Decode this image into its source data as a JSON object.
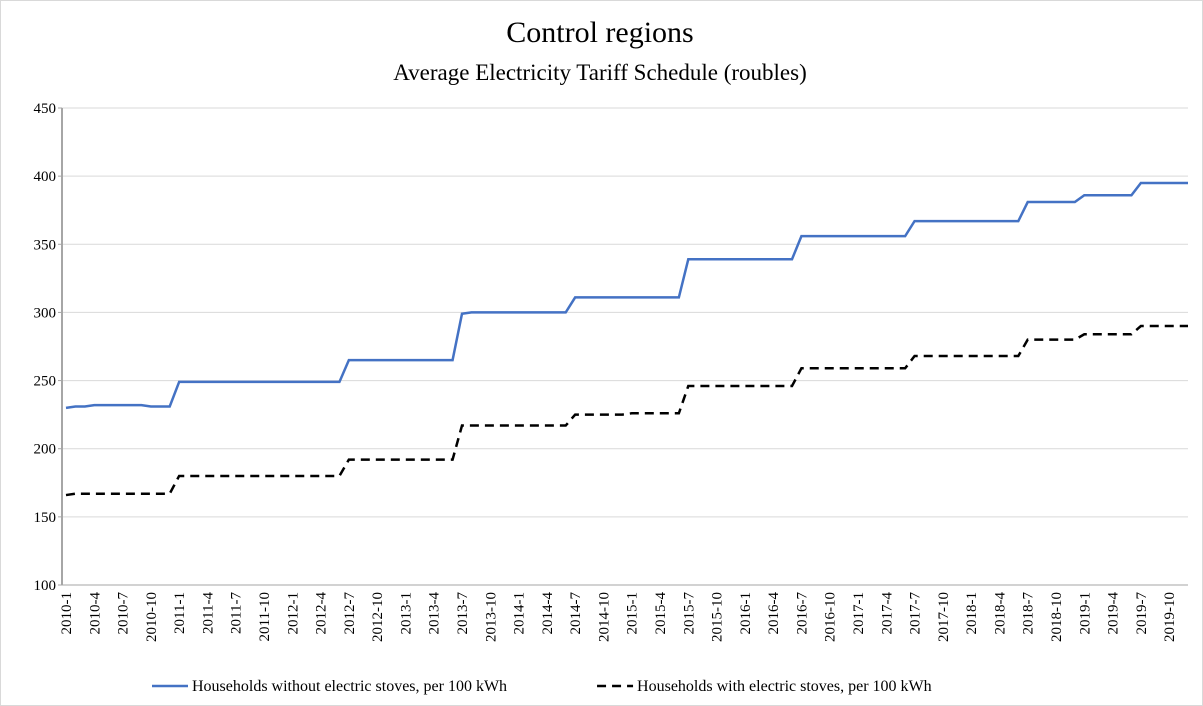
{
  "chart_data": {
    "type": "line",
    "title": "Control regions",
    "subtitle": "Average Electricity Tariff Schedule  (roubles)",
    "categories": [
      "2010-1",
      null,
      null,
      "2010-4",
      null,
      null,
      "2010-7",
      null,
      null,
      "2010-10",
      null,
      null,
      "2011-1",
      null,
      null,
      "2011-4",
      null,
      null,
      "2011-7",
      null,
      null,
      "2011-10",
      null,
      null,
      "2012-1",
      null,
      null,
      "2012-4",
      null,
      null,
      "2012-7",
      null,
      null,
      "2012-10",
      null,
      null,
      "2013-1",
      null,
      null,
      "2013-4",
      null,
      null,
      "2013-7",
      null,
      null,
      "2013-10",
      null,
      null,
      "2014-1",
      null,
      null,
      "2014-4",
      null,
      null,
      "2014-7",
      null,
      null,
      "2014-10",
      null,
      null,
      "2015-1",
      null,
      null,
      "2015-4",
      null,
      null,
      "2015-7",
      null,
      null,
      "2015-10",
      null,
      null,
      "2016-1",
      null,
      null,
      "2016-4",
      null,
      null,
      "2016-7",
      null,
      null,
      "2016-10",
      null,
      null,
      "2017-1",
      null,
      null,
      "2017-4",
      null,
      null,
      "2017-7",
      null,
      null,
      "2017-10",
      null,
      null,
      "2018-1",
      null,
      null,
      "2018-4",
      null,
      null,
      "2018-7",
      null,
      null,
      "2018-10",
      null,
      null,
      "2019-1",
      null,
      null,
      "2019-4",
      null,
      null,
      "2019-7",
      null,
      null,
      "2019-10",
      null,
      null
    ],
    "series": [
      {
        "name": "Households  without electric stoves, per 100 kWh",
        "color": "#4472c4",
        "linestyle": "solid",
        "values": [
          230,
          231,
          231,
          232,
          232,
          232,
          232,
          232,
          232,
          231,
          231,
          231,
          249,
          249,
          249,
          249,
          249,
          249,
          249,
          249,
          249,
          249,
          249,
          249,
          249,
          249,
          249,
          249,
          249,
          249,
          265,
          265,
          265,
          265,
          265,
          265,
          265,
          265,
          265,
          265,
          265,
          265,
          299,
          300,
          300,
          300,
          300,
          300,
          300,
          300,
          300,
          300,
          300,
          300,
          311,
          311,
          311,
          311,
          311,
          311,
          311,
          311,
          311,
          311,
          311,
          311,
          339,
          339,
          339,
          339,
          339,
          339,
          339,
          339,
          339,
          339,
          339,
          339,
          356,
          356,
          356,
          356,
          356,
          356,
          356,
          356,
          356,
          356,
          356,
          356,
          367,
          367,
          367,
          367,
          367,
          367,
          367,
          367,
          367,
          367,
          367,
          367,
          381,
          381,
          381,
          381,
          381,
          381,
          386,
          386,
          386,
          386,
          386,
          386,
          395,
          395,
          395,
          395,
          395,
          395
        ]
      },
      {
        "name": "Households  with electric stoves, per 100 kWh",
        "color": "#000000",
        "linestyle": "dashed",
        "values": [
          166,
          167,
          167,
          167,
          167,
          167,
          167,
          167,
          167,
          167,
          167,
          167,
          180,
          180,
          180,
          180,
          180,
          180,
          180,
          180,
          180,
          180,
          180,
          180,
          180,
          180,
          180,
          180,
          180,
          180,
          192,
          192,
          192,
          192,
          192,
          192,
          192,
          192,
          192,
          192,
          192,
          192,
          217,
          217,
          217,
          217,
          217,
          217,
          217,
          217,
          217,
          217,
          217,
          217,
          225,
          225,
          225,
          225,
          225,
          225,
          226,
          226,
          226,
          226,
          226,
          226,
          246,
          246,
          246,
          246,
          246,
          246,
          246,
          246,
          246,
          246,
          246,
          246,
          259,
          259,
          259,
          259,
          259,
          259,
          259,
          259,
          259,
          259,
          259,
          259,
          268,
          268,
          268,
          268,
          268,
          268,
          268,
          268,
          268,
          268,
          268,
          268,
          280,
          280,
          280,
          280,
          280,
          280,
          284,
          284,
          284,
          284,
          284,
          284,
          290,
          290,
          290,
          290,
          290,
          290
        ]
      }
    ],
    "ylim": [
      100,
      450
    ],
    "yticks": [
      100,
      150,
      200,
      250,
      300,
      350,
      400,
      450
    ],
    "grid": true,
    "legend": "bottom"
  }
}
